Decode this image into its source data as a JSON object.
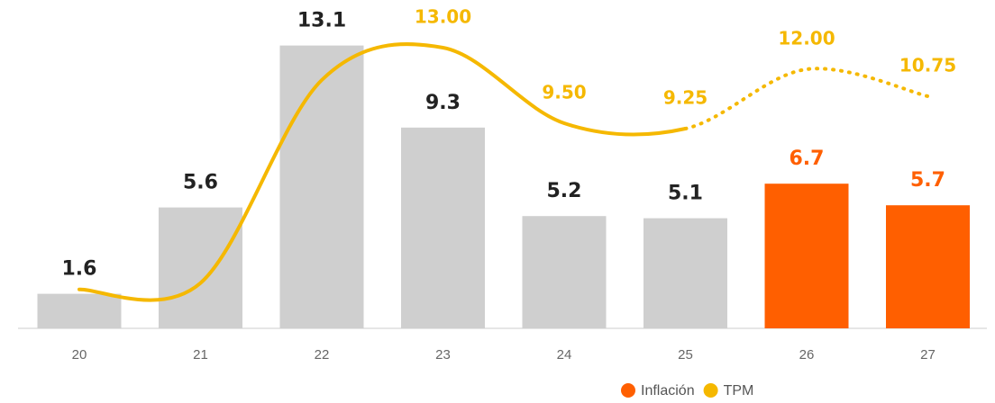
{
  "chart_data": {
    "type": "bar_line",
    "categories": [
      "20",
      "21",
      "22",
      "23",
      "24",
      "25",
      "26",
      "27"
    ],
    "ylim": [
      0,
      14
    ],
    "series": [
      {
        "name": "Inflación",
        "type": "bar",
        "color": "#ff5f00",
        "colors": [
          "#cfcfcf",
          "#cfcfcf",
          "#cfcfcf",
          "#cfcfcf",
          "#cfcfcf",
          "#cfcfcf",
          "#ff5f00",
          "#ff5f00"
        ],
        "label_colors": [
          "#222222",
          "#222222",
          "#222222",
          "#222222",
          "#222222",
          "#222222",
          "#ff5f00",
          "#ff5f00"
        ],
        "values": [
          1.6,
          5.6,
          13.1,
          9.3,
          5.2,
          5.1,
          6.7,
          5.7
        ]
      },
      {
        "name": "TPM",
        "type": "line",
        "color": "#f5b800",
        "dotted_from_index": 5,
        "values": [
          1.8,
          2.1,
          11.5,
          13.0,
          9.5,
          9.25,
          12.0,
          10.75
        ],
        "value_labels": [
          null,
          null,
          null,
          "13.00",
          "9.50",
          "9.25",
          "12.00",
          "10.75"
        ]
      }
    ]
  }
}
